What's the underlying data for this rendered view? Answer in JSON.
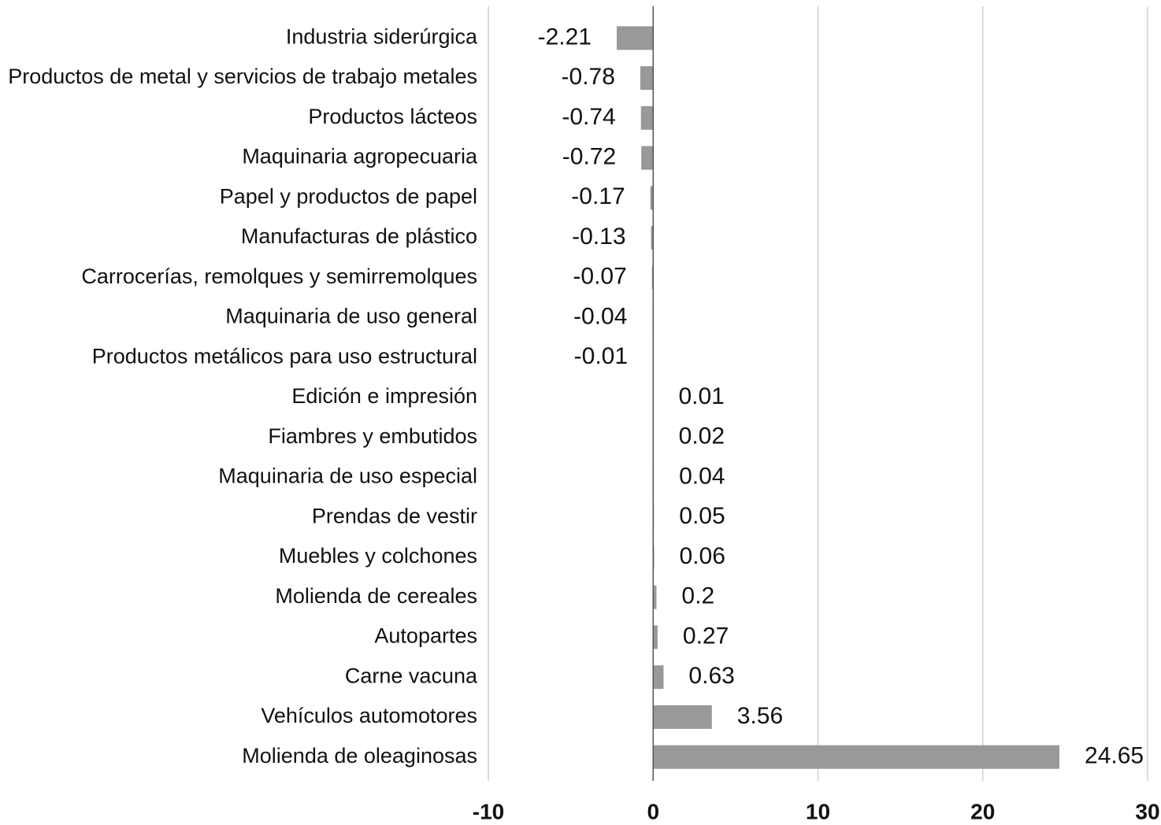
{
  "chart_data": {
    "type": "barh",
    "categories": [
      "Industria siderúrgica",
      "Productos de metal y servicios de trabajo metales",
      "Productos lácteos",
      "Maquinaria agropecuaria",
      "Papel y productos de papel",
      "Manufacturas de plástico",
      "Carrocerías, remolques y semirremolques",
      "Maquinaria de uso general",
      "Productos metálicos para uso estructural",
      "Edición e impresión",
      "Fiambres y embutidos",
      "Maquinaria de uso especial",
      "Prendas de vestir",
      "Muebles y colchones",
      "Molienda de cereales",
      "Autopartes",
      "Carne vacuna",
      "Vehículos automotores",
      "Molienda de oleaginosas"
    ],
    "values": [
      -2.21,
      -0.78,
      -0.74,
      -0.72,
      -0.17,
      -0.13,
      -0.07,
      -0.04,
      -0.01,
      0.01,
      0.02,
      0.04,
      0.05,
      0.06,
      0.2,
      0.27,
      0.63,
      3.56,
      24.65
    ],
    "color": "#999999",
    "xlim": [
      -10,
      30
    ],
    "xticks": [
      -10,
      0,
      10,
      20,
      30
    ],
    "grid": true
  }
}
